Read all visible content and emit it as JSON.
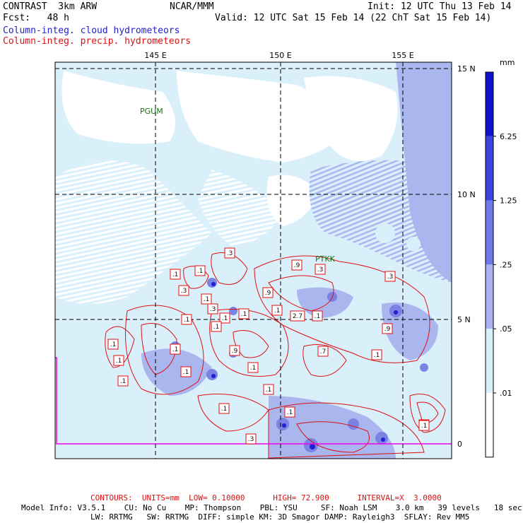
{
  "header": {
    "line1_left": "CONTRAST  3km ARW",
    "line1_center": "NCAR/MMM",
    "line1_right": "Init: 12 UTC Thu 13 Feb 14",
    "line2_left": "Fcst:   48 h",
    "line2_right": "Valid: 12 UTC Sat 15 Feb 14 (22 ChT Sat 15 Feb 14)",
    "legend_blue": "Column-integ. cloud hydrometeors",
    "legend_red": "Column-integ. precip. hydrometeors"
  },
  "map": {
    "lon_labels": [
      "145 E",
      "150 E",
      "155 E"
    ],
    "lat_labels": [
      "15 N",
      "10 N",
      "5 N",
      "0"
    ],
    "stations": [
      "PGUM",
      "PTKK"
    ],
    "contour_labels": [
      ".3",
      ".1",
      ".1",
      ".3",
      ".1",
      ".1",
      ".3",
      ".9",
      ".3",
      ".9",
      ".3",
      ".1",
      ".1",
      ".1",
      "2.7",
      ".1",
      ".1",
      ".1",
      ".1",
      ".1",
      ".7",
      ".9",
      ".1",
      ".1",
      ".9",
      ".1",
      ".1",
      ".1",
      ".1",
      ".1",
      ".1",
      ".3",
      ".1"
    ],
    "colors": {
      "cloud_light": "#d9f0fb",
      "cloud_mid": "#aab6ee",
      "cloud_heavy": "#7a83e4",
      "cloud_max": "#2020d6",
      "contour": "#e01010",
      "boundary": "#ee00ee"
    }
  },
  "colorbar": {
    "unit": "mm",
    "levels": [
      "6.25",
      "1.25",
      ".25",
      ".05",
      ".01"
    ],
    "colors": [
      "#1010cc",
      "#3a44dd",
      "#6e78e6",
      "#a8b2f0",
      "#d9f0fb",
      "#ffffff"
    ]
  },
  "footer": {
    "contours": "CONTOURS:  UNITS=mm  LOW= 0.10000      HIGH= 72.900      INTERVAL=X  3.0000",
    "model_line1": "Model Info: V3.5.1    CU: No Cu    MP: Thompson    PBL: YSU     SF: Noah LSM    3.0 km   39 levels   18 sec",
    "model_line2": "LW: RRTMG   SW: RRTMG  DIFF: simple KM: 3D Smagor DAMP: Rayleigh3  SFLAY: Rev MM5"
  }
}
